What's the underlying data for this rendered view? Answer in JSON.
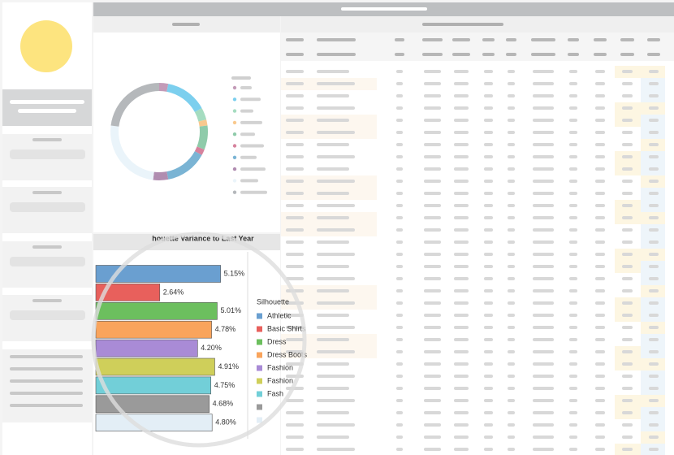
{
  "chart_data": [
    {
      "type": "pie",
      "donut": true,
      "values": [
        3,
        14,
        4,
        2,
        8,
        2,
        14,
        5,
        25,
        23
      ],
      "colors": [
        "#c39bb8",
        "#7ccfee",
        "#a5dcc0",
        "#f9c98e",
        "#8fcbaa",
        "#d6829d",
        "#7ab4d4",
        "#b08db0",
        "#eaf4fa",
        "#b5b8bb"
      ]
    },
    {
      "type": "bar",
      "orientation": "horizontal",
      "title": "houette Variance to Last Year",
      "legend_title": "Silhouette",
      "categories": [
        "Athletic",
        "Basic Shirts",
        "Dress",
        "Dress Boots",
        "Fashion",
        "Fashion",
        "Fash",
        null,
        null
      ],
      "values": [
        5.15,
        2.64,
        5.01,
        4.78,
        4.2,
        4.91,
        4.75,
        4.68,
        4.8
      ],
      "value_labels": [
        "5.15%",
        "2.64%",
        "5.01%",
        "4.78%",
        "4.20%",
        "4.91%",
        "4.75%",
        "4.68%",
        "4.80%"
      ],
      "colors": [
        "#6a9fd0",
        "#e8605c",
        "#6cbf5e",
        "#f9a45c",
        "#a98bd6",
        "#cfcf5a",
        "#72cfd8",
        "#9a9a9a",
        "#e3eef6"
      ],
      "xlim": [
        0,
        6
      ]
    }
  ]
}
